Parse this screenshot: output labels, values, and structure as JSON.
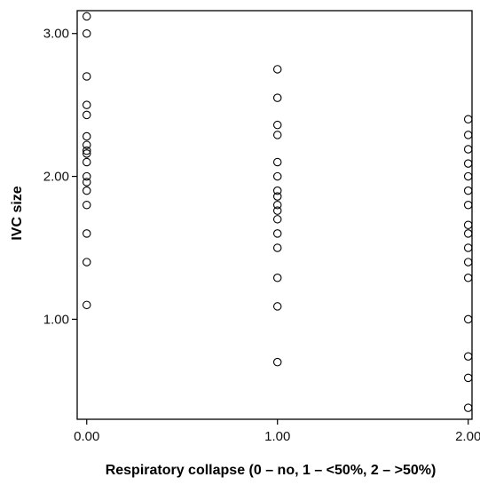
{
  "chart_data": {
    "type": "scatter",
    "title": "",
    "xlabel": "Respiratory collapse (0 – no, 1 – <50%, 2 – >50%)",
    "ylabel": "IVC size",
    "xlim": [
      -0.05,
      2.02
    ],
    "ylim": [
      0.3,
      3.16
    ],
    "x_ticks": [
      "0.00",
      "1.00",
      "2.00"
    ],
    "y_ticks": [
      "1.00",
      "2.00",
      "3.00"
    ],
    "x_tick_values": [
      0,
      1,
      2
    ],
    "y_tick_values": [
      1,
      2,
      3
    ],
    "grid": false,
    "marker": "open-circle",
    "series": [
      {
        "points": [
          [
            0,
            3.12
          ],
          [
            0,
            3.0
          ],
          [
            0,
            2.7
          ],
          [
            0,
            2.5
          ],
          [
            0,
            2.43
          ],
          [
            0,
            2.28
          ],
          [
            0,
            2.22
          ],
          [
            0,
            2.18
          ],
          [
            0,
            2.16
          ],
          [
            0,
            2.1
          ],
          [
            0,
            2.0
          ],
          [
            0,
            1.96
          ],
          [
            0,
            1.9
          ],
          [
            0,
            1.8
          ],
          [
            0,
            1.6
          ],
          [
            0,
            1.4
          ],
          [
            0,
            1.1
          ],
          [
            1,
            2.75
          ],
          [
            1,
            2.55
          ],
          [
            1,
            2.36
          ],
          [
            1,
            2.29
          ],
          [
            1,
            2.1
          ],
          [
            1,
            2.0
          ],
          [
            1,
            1.9
          ],
          [
            1,
            1.86
          ],
          [
            1,
            1.8
          ],
          [
            1,
            1.76
          ],
          [
            1,
            1.7
          ],
          [
            1,
            1.6
          ],
          [
            1,
            1.5
          ],
          [
            1,
            1.29
          ],
          [
            1,
            1.09
          ],
          [
            1,
            0.7
          ],
          [
            2,
            2.4
          ],
          [
            2,
            2.29
          ],
          [
            2,
            2.19
          ],
          [
            2,
            2.09
          ],
          [
            2,
            2.0
          ],
          [
            2,
            1.9
          ],
          [
            2,
            1.8
          ],
          [
            2,
            1.66
          ],
          [
            2,
            1.6
          ],
          [
            2,
            1.5
          ],
          [
            2,
            1.4
          ],
          [
            2,
            1.29
          ],
          [
            2,
            1.0
          ],
          [
            2,
            0.74
          ],
          [
            2,
            0.59
          ],
          [
            2,
            0.38
          ]
        ]
      }
    ]
  }
}
